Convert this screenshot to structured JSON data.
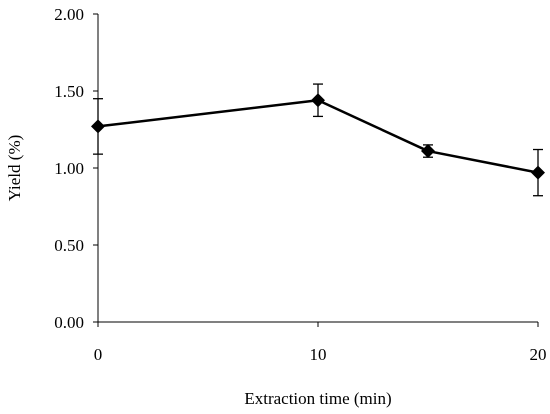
{
  "chart_data": {
    "type": "line",
    "title": "",
    "xlabel": "Extraction time (min)",
    "ylabel": "Yield (%)",
    "xlim": [
      0,
      20
    ],
    "ylim": [
      0,
      2.0
    ],
    "x_ticks": [
      0,
      10,
      20
    ],
    "x_tick_labels": [
      "0",
      "10",
      "20"
    ],
    "y_ticks": [
      0,
      0.5,
      1.0,
      1.5,
      2.0
    ],
    "y_tick_labels": [
      "0.00",
      "0.50",
      "1.00",
      "1.50",
      "2.00"
    ],
    "grid": false,
    "legend": "none",
    "series": [
      {
        "x": [
          0,
          10,
          15,
          20
        ],
        "y": [
          1.27,
          1.44,
          1.11,
          0.97
        ],
        "error": [
          0.18,
          0.105,
          0.04,
          0.15
        ],
        "marker": "diamond",
        "color": "#000000"
      }
    ]
  }
}
